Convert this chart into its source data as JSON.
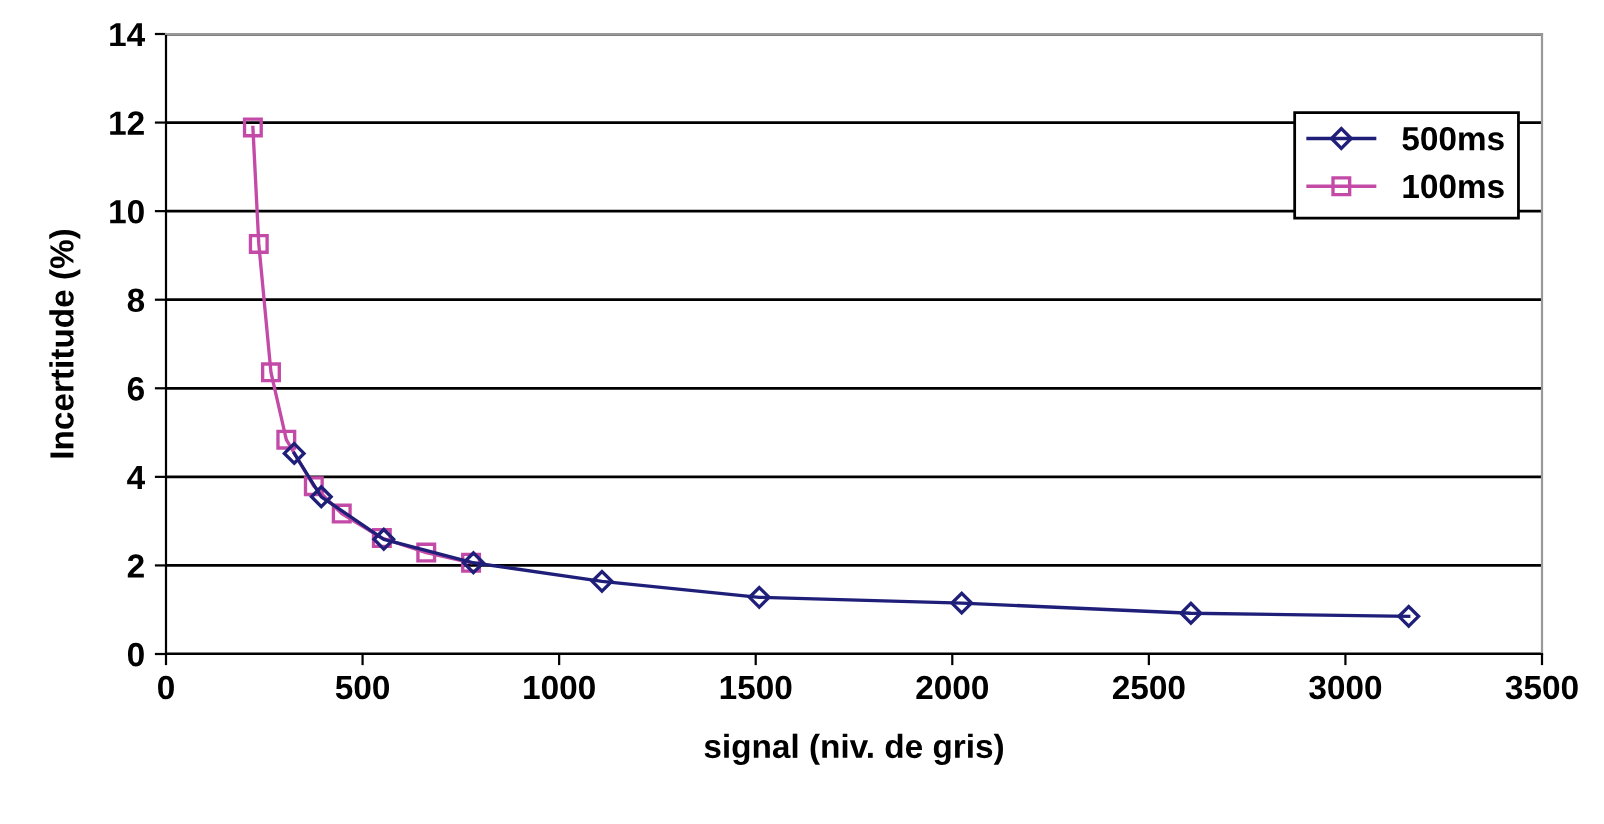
{
  "chart_data": {
    "type": "line",
    "xlabel": "signal (niv. de gris)",
    "ylabel": "Incertitude (%)",
    "xlim": [
      0,
      3500
    ],
    "xticks": [
      0,
      500,
      1000,
      1500,
      2000,
      2500,
      3000,
      3500
    ],
    "ylim": [
      0,
      14
    ],
    "yticks": [
      0,
      2,
      4,
      6,
      8,
      10,
      12,
      14
    ],
    "grid": "y",
    "legend": "top right",
    "series": [
      {
        "name": "500ms",
        "color": "#1f1f7a",
        "marker": "diamond",
        "x": [
          326,
          395,
          554,
          782,
          1109,
          1509,
          2024,
          2607,
          3161
        ],
        "values": [
          4.53,
          3.55,
          2.59,
          2.06,
          1.64,
          1.28,
          1.15,
          0.92,
          0.85
        ]
      },
      {
        "name": "100ms",
        "color": "#c44aa8",
        "marker": "square",
        "x": [
          221,
          236,
          267,
          306,
          376,
          447,
          549,
          662,
          776
        ],
        "values": [
          11.89,
          9.26,
          6.36,
          4.84,
          3.79,
          3.17,
          2.62,
          2.29,
          2.06
        ]
      }
    ]
  }
}
